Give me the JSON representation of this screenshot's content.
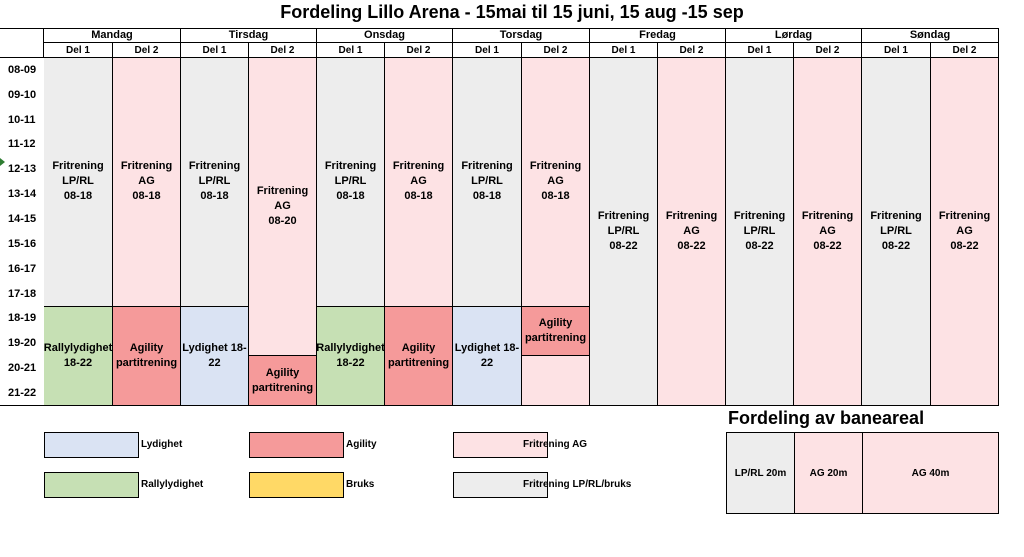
{
  "title": "Fordeling Lillo Arena - 15mai til 15 juni, 15 aug -15 sep",
  "days": [
    "Mandag",
    "Tirsdag",
    "Onsdag",
    "Torsdag",
    "Fredag",
    "Lørdag",
    "Søndag"
  ],
  "parts": [
    "Del 1",
    "Del 2"
  ],
  "times": [
    "08-09",
    "09-10",
    "10-11",
    "11-12",
    "12-13",
    "13-14",
    "14-15",
    "15-16",
    "16-17",
    "17-18",
    "18-19",
    "19-20",
    "20-21",
    "21-22"
  ],
  "blocks": {
    "mon_d1_top": "Fritrening\nLP/RL\n08-18",
    "mon_d2_top": "Fritrening AG\n08-18",
    "mon_d1_bot": "Rallylydighet\n18-22",
    "mon_d2_bot": "Agility\npartitrening",
    "tue_d1_top": "Fritrening\nLP/RL\n08-18",
    "tue_d2_top": "Fritrening AG\n08-20",
    "tue_d1_bot": "Lydighet 18-\n22",
    "tue_d2_bot": "Agility\npartitrening",
    "wed_d1_top": "Fritrening\nLP/RL\n08-18",
    "wed_d2_top": "Fritrening AG\n08-18",
    "wed_d1_bot": "Rallylydighet\n18-22",
    "wed_d2_bot": "Agility\npartitrening",
    "thu_d1_top": "Fritrening\nLP/RL\n08-18",
    "thu_d2_top": "Fritrening AG\n08-18",
    "thu_d1_bot": "Lydighet 18-\n22",
    "thu_d2_mid": "Agility\npartitrening",
    "fri_d1": "Fritrening\nLP/RL\n08-22",
    "fri_d2": "Fritrening AG\n08-22",
    "sat_d1": "Fritrening\nLP/RL\n08-22",
    "sat_d2": "Fritrening AG\n08-22",
    "sun_d1": "Fritrening\nLP/RL\n08-22",
    "sun_d2": "Fritrening AG\n08-22"
  },
  "legend": {
    "lydighet": "Lydighet",
    "agility": "Agility",
    "fritrening_ag": "Fritrening AG",
    "rallylydighet": "Rallylydighet",
    "bruks": "Bruks",
    "fritrening_lp": "Fritrening LP/RL/bruks"
  },
  "fordeling": {
    "heading": "Fordeling av baneareal",
    "lprl": "LP/RL 20m",
    "ag20": "AG 20m",
    "ag40": "AG 40m"
  },
  "colors": {
    "gray": "#ededed",
    "pink": "#fde2e4",
    "red": "#f59a9a",
    "blue": "#dae3f3",
    "green": "#c6e0b4",
    "yellow": "#ffd966"
  }
}
